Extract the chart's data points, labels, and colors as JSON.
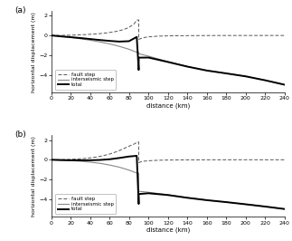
{
  "panel_a": {
    "label": "(a)",
    "fault_step": {
      "x": [
        0,
        5,
        10,
        15,
        20,
        25,
        30,
        35,
        40,
        45,
        50,
        55,
        60,
        65,
        70,
        75,
        80,
        85,
        88,
        89.5,
        90,
        90,
        92,
        95,
        100,
        110,
        120,
        140,
        160,
        180,
        200,
        220,
        240
      ],
      "y": [
        0,
        0.005,
        0.01,
        0.02,
        0.03,
        0.05,
        0.07,
        0.09,
        0.12,
        0.15,
        0.19,
        0.24,
        0.3,
        0.38,
        0.48,
        0.62,
        0.82,
        1.15,
        1.55,
        1.58,
        1.58,
        -0.4,
        -0.32,
        -0.22,
        -0.14,
        -0.07,
        -0.04,
        -0.015,
        -0.006,
        -0.002,
        -0.001,
        0,
        0
      ]
    },
    "interseismic_step": {
      "x": [
        0,
        5,
        10,
        20,
        30,
        40,
        50,
        60,
        70,
        80,
        88,
        90,
        90,
        100,
        120,
        140,
        160,
        180,
        200,
        220,
        240
      ],
      "y": [
        0,
        -0.05,
        -0.1,
        -0.2,
        -0.33,
        -0.48,
        -0.65,
        -0.85,
        -1.1,
        -1.4,
        -1.7,
        -1.7,
        -1.85,
        -2.1,
        -2.65,
        -3.15,
        -3.55,
        -3.85,
        -4.15,
        -4.55,
        -5.0
      ]
    },
    "total": {
      "x": [
        0,
        5,
        10,
        20,
        30,
        40,
        50,
        60,
        70,
        80,
        88,
        90,
        90,
        100,
        120,
        140,
        160,
        180,
        200,
        220,
        240
      ],
      "y": [
        0,
        -0.04,
        -0.09,
        -0.17,
        -0.26,
        -0.36,
        -0.46,
        -0.55,
        -0.62,
        -0.58,
        -0.15,
        -3.5,
        -2.25,
        -2.24,
        -2.69,
        -3.16,
        -3.56,
        -3.85,
        -4.15,
        -4.55,
        -5.0
      ]
    },
    "ylim": [
      -5.8,
      2.5
    ],
    "yticks": [
      -4,
      -2,
      0,
      2
    ],
    "xlim": [
      0,
      240
    ],
    "xticks": [
      0,
      20,
      40,
      60,
      80,
      100,
      120,
      140,
      160,
      180,
      200,
      220,
      240
    ]
  },
  "panel_b": {
    "label": "(b)",
    "fault_step": {
      "x": [
        0,
        5,
        10,
        15,
        20,
        25,
        30,
        35,
        40,
        45,
        50,
        55,
        60,
        65,
        70,
        75,
        80,
        85,
        88,
        89.5,
        90,
        90,
        92,
        95,
        100,
        110,
        120,
        140,
        160,
        180,
        200,
        220,
        240
      ],
      "y": [
        0,
        0.005,
        0.01,
        0.02,
        0.04,
        0.07,
        0.1,
        0.14,
        0.19,
        0.26,
        0.34,
        0.45,
        0.58,
        0.74,
        0.93,
        1.15,
        1.38,
        1.58,
        1.75,
        1.8,
        1.8,
        -0.28,
        -0.22,
        -0.15,
        -0.1,
        -0.05,
        -0.03,
        -0.01,
        -0.004,
        -0.001,
        0,
        0,
        0
      ]
    },
    "interseismic_step": {
      "x": [
        0,
        5,
        10,
        20,
        30,
        40,
        50,
        60,
        70,
        80,
        88,
        90,
        90,
        100,
        120,
        140,
        160,
        180,
        200,
        220,
        240
      ],
      "y": [
        0,
        -0.02,
        -0.04,
        -0.09,
        -0.15,
        -0.24,
        -0.36,
        -0.53,
        -0.75,
        -1.05,
        -1.35,
        -1.35,
        -3.2,
        -3.3,
        -3.55,
        -3.85,
        -4.1,
        -4.3,
        -4.52,
        -4.75,
        -5.0
      ]
    },
    "total": {
      "x": [
        0,
        5,
        10,
        20,
        30,
        40,
        50,
        60,
        70,
        80,
        88,
        90,
        90,
        100,
        120,
        140,
        160,
        180,
        200,
        220,
        240
      ],
      "y": [
        0,
        -0.015,
        -0.03,
        -0.05,
        -0.05,
        -0.05,
        -0.02,
        0.05,
        0.18,
        0.33,
        0.4,
        -4.48,
        -3.48,
        -3.4,
        -3.58,
        -3.86,
        -4.1,
        -4.3,
        -4.52,
        -4.75,
        -5.0
      ]
    },
    "ylim": [
      -5.8,
      2.5
    ],
    "yticks": [
      -4,
      -2,
      0,
      2
    ],
    "xlim": [
      0,
      240
    ],
    "xticks": [
      0,
      20,
      40,
      60,
      80,
      100,
      120,
      140,
      160,
      180,
      200,
      220,
      240
    ]
  },
  "legend_labels": [
    "fault step",
    "interseismic step",
    "total"
  ],
  "ylabel": "horizontal displacement (m)",
  "xlabel": "distance (km)",
  "fault_color": "#555555",
  "interseismic_color": "#888888",
  "total_color": "#000000",
  "fault_lw": 0.7,
  "interseismic_lw": 0.8,
  "total_lw": 1.4
}
